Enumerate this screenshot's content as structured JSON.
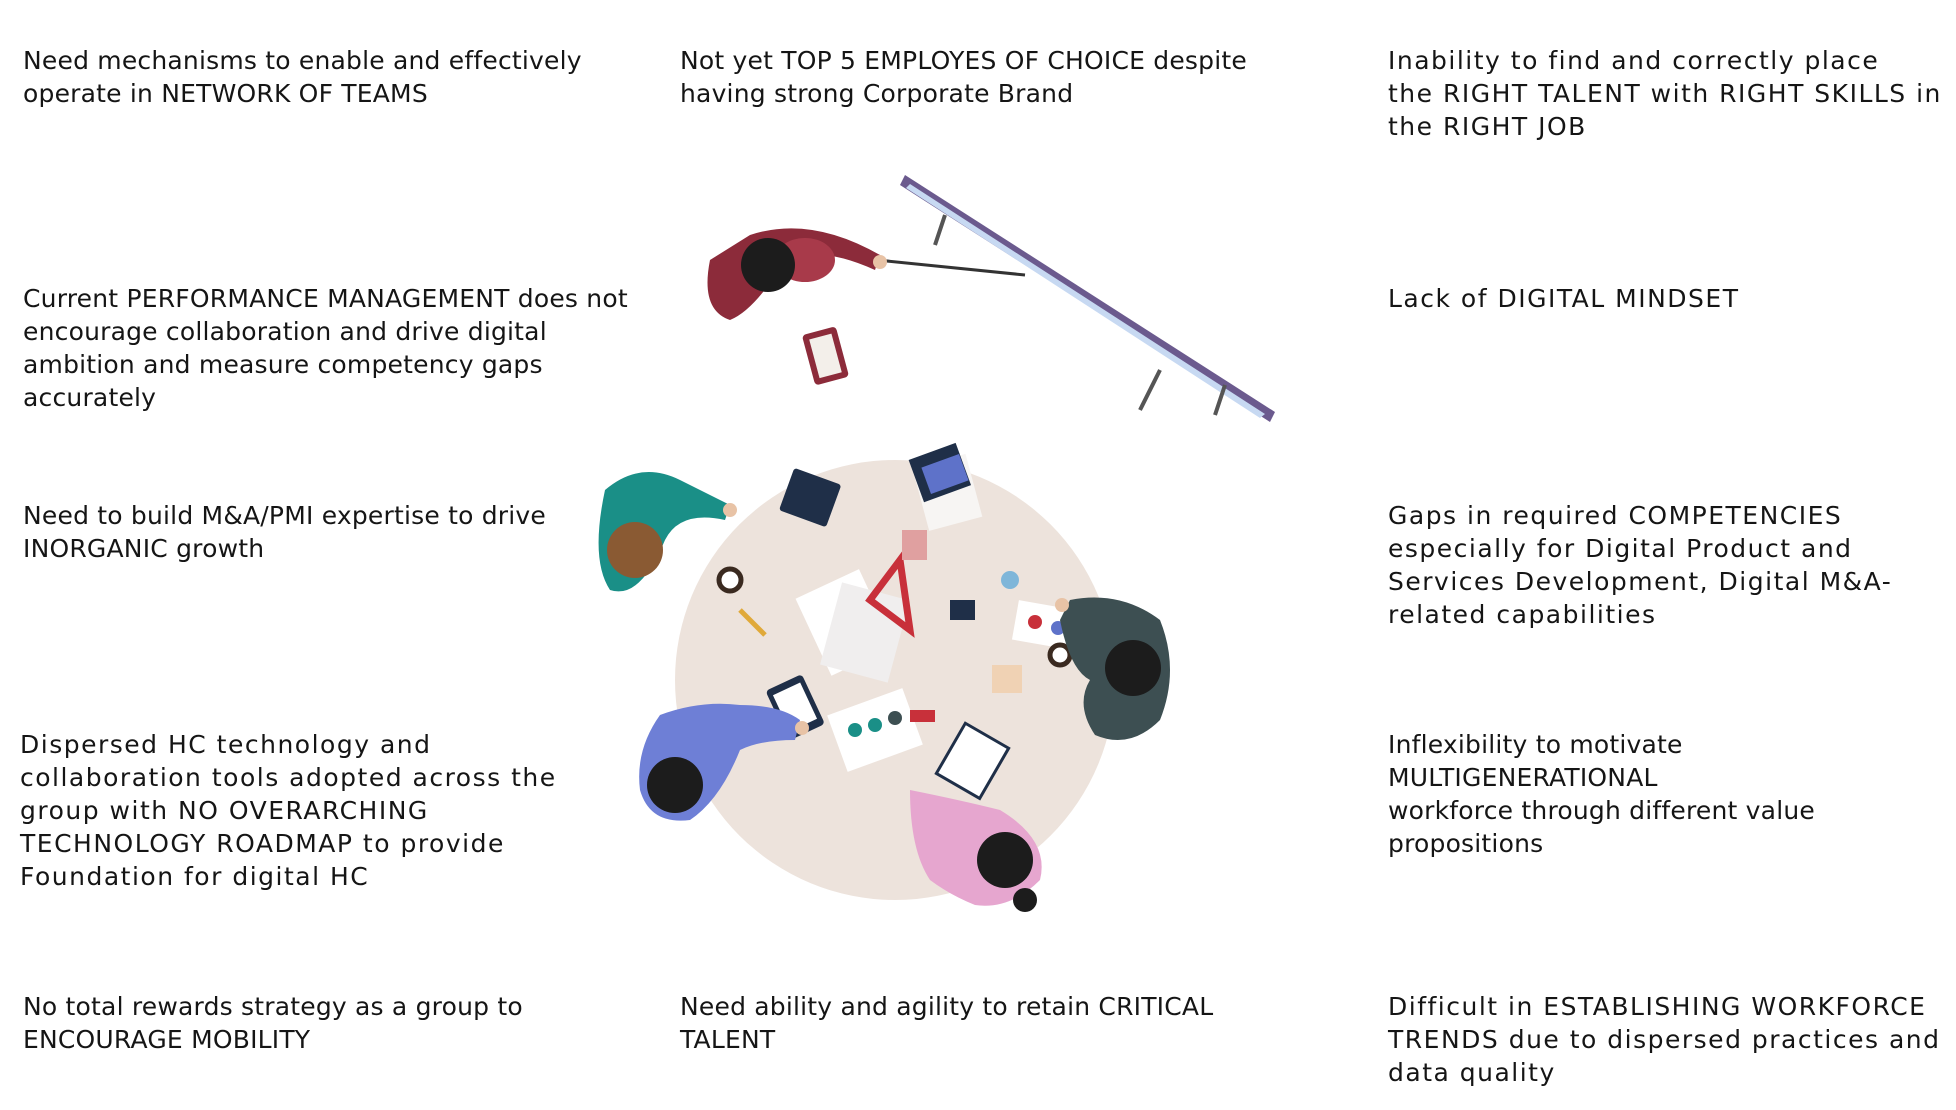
{
  "issues": {
    "network_of_teams": "Need  mechanisms  to  enable  and effectively\noperate  in   NETWORK OF TEAMS",
    "employer_of_choice": "Not  yet  TOP 5 EMPLOYES OF CHOICE despite\nhaving  strong Corporate Brand",
    "right_talent": "Inability  to  find  and  correctly  place\nthe RIGHT TALENT with RIGHT SKILLS in\nthe RIGHT JOB",
    "performance_management": "Current PERFORMANCE MANAGEMENT does not\nencourage collaboration and drive digital\nambition and measure competency gaps\naccurately",
    "digital_mindset": "Lack of DIGITAL MINDSET",
    "inorganic_growth": "Need  to  build  M&A/PMI  expertise  to  drive\nINORGANIC growth",
    "competencies": "Gaps in required COMPETENCIES\nespecially for Digital Product and\nServices Development, Digital M&A-\nrelated capabilities",
    "hc_technology": "Dispersed HC technology and\ncollaboration tools adopted across the\ngroup with NO OVERARCHING\nTECHNOLOGY ROADMAP to provide\nFoundation for digital HC",
    "multigenerational": "Inflexibility to motivate MULTIGENERATIONAL\nworkforce through different value propositions",
    "total_rewards": "No total rewards strategy as a group to\nENCOURAGE MOBILITY",
    "critical_talent": "Need ability and agility to retain CRITICAL\nTALENT",
    "workforce_trends": "Difficult in ESTABLISHING WORKFORCE\nTRENDS due to dispersed practices and\ndata quality"
  },
  "illustration": {
    "icon": "team-meeting-table-icon",
    "colors": {
      "table": "#ede3dc",
      "board_frame": "#6b5a8e",
      "board_glow": "#c7d9f2",
      "presenter": "#8c2b3a",
      "person_teal": "#1a8f87",
      "person_slate": "#3d4f52",
      "person_blue": "#6e7fd6",
      "person_pink": "#e6a6cf",
      "hair": "#1c1c1c",
      "hair_brown": "#8a5a33",
      "accent_red": "#c8303a"
    }
  }
}
